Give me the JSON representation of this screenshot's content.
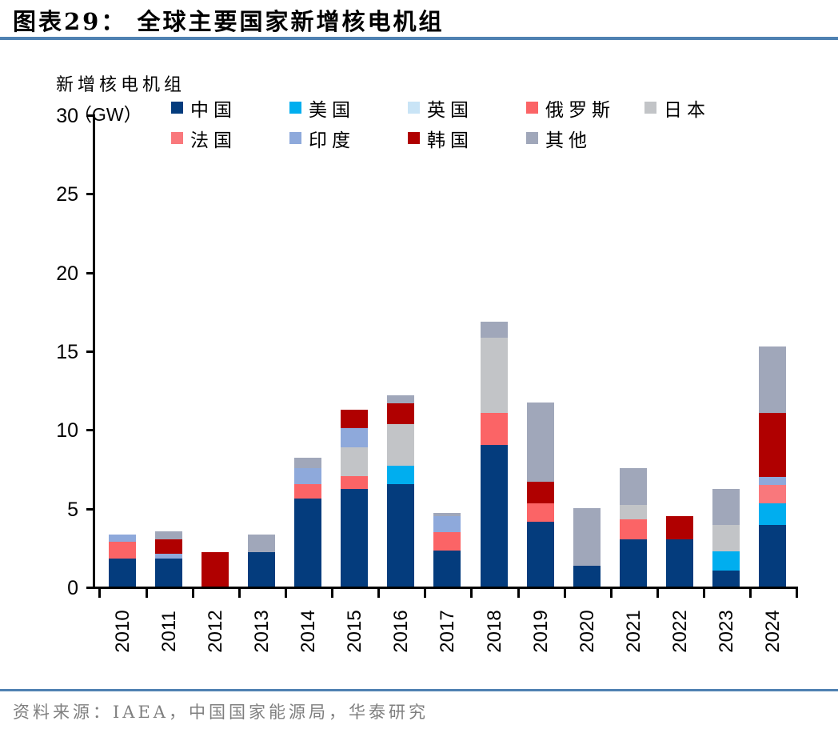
{
  "header": {
    "title": "图表29：  全球主要国家新增核电机组"
  },
  "chart": {
    "axis_title": "新增核电机组",
    "axis_unit": "（GW）"
  },
  "footer": {
    "source": "资料来源：IAEA，中国国家能源局，华泰研究"
  },
  "colors": {
    "accent_rule": "#4f81b2",
    "axis": "#000000",
    "source_text": "#7f7f7f"
  },
  "chart_data": {
    "type": "bar",
    "stacked": true,
    "title": "全球主要国家新增核电机组",
    "ylabel": "新增核电机组（GW）",
    "xlabel": "",
    "ylim": [
      0,
      30
    ],
    "yticks": [
      0,
      5,
      10,
      15,
      20,
      25,
      30
    ],
    "grid": false,
    "legend_position": "top",
    "categories": [
      "2010",
      "2011",
      "2012",
      "2013",
      "2014",
      "2015",
      "2016",
      "2017",
      "2018",
      "2019",
      "2020",
      "2021",
      "2022",
      "2023",
      "2024"
    ],
    "series": [
      {
        "name": "中国",
        "color": "#043c7d",
        "values": [
          1.8,
          1.8,
          0,
          2.2,
          5.6,
          6.2,
          6.5,
          2.3,
          9.0,
          4.1,
          1.3,
          3.0,
          3.0,
          1.0,
          3.9
        ]
      },
      {
        "name": "美国",
        "color": "#00aeef",
        "values": [
          0,
          0,
          0,
          0,
          0,
          0,
          1.2,
          0,
          0,
          0,
          0,
          0,
          0,
          1.25,
          1.4
        ]
      },
      {
        "name": "英国",
        "color": "#c9e4f6",
        "values": [
          0,
          0,
          0,
          0,
          0,
          0,
          0,
          0,
          0,
          0,
          0,
          0,
          0,
          0,
          0
        ]
      },
      {
        "name": "俄罗斯",
        "color": "#fb6466",
        "values": [
          1.05,
          0,
          0,
          0,
          0.9,
          0.8,
          0,
          1.15,
          2.05,
          1.2,
          0,
          1.25,
          0,
          0,
          0
        ]
      },
      {
        "name": "日本",
        "color": "#c2c4c7",
        "values": [
          0,
          0,
          0,
          0,
          0,
          1.85,
          2.6,
          0,
          4.75,
          0,
          0,
          0.95,
          0,
          1.65,
          0
        ]
      },
      {
        "name": "法国",
        "color": "#f9787c",
        "values": [
          0,
          0,
          0,
          0,
          0,
          0,
          0,
          0,
          0,
          0,
          0,
          0,
          0,
          0,
          1.15
        ]
      },
      {
        "name": "印度",
        "color": "#8ea9db",
        "values": [
          0.45,
          0.3,
          0,
          0,
          1.05,
          1.2,
          0,
          1.05,
          0,
          0,
          0,
          0,
          0,
          0,
          0.5
        ]
      },
      {
        "name": "韩国",
        "color": "#b00000",
        "values": [
          0,
          0.9,
          2.2,
          0,
          0,
          1.2,
          1.35,
          0,
          0,
          1.35,
          0,
          0,
          1.5,
          0,
          4.1
        ]
      },
      {
        "name": "其他",
        "color": "#a0a7ba",
        "values": [
          0,
          0.5,
          0,
          1.1,
          0.65,
          0,
          0.5,
          0.2,
          1.05,
          5.05,
          3.7,
          2.35,
          0,
          2.3,
          4.2
        ]
      }
    ],
    "totals": [
      3.3,
      3.5,
      2.2,
      3.3,
      8.2,
      11.25,
      12.15,
      4.7,
      16.85,
      11.7,
      5.0,
      7.55,
      4.5,
      6.2,
      15.25
    ]
  }
}
